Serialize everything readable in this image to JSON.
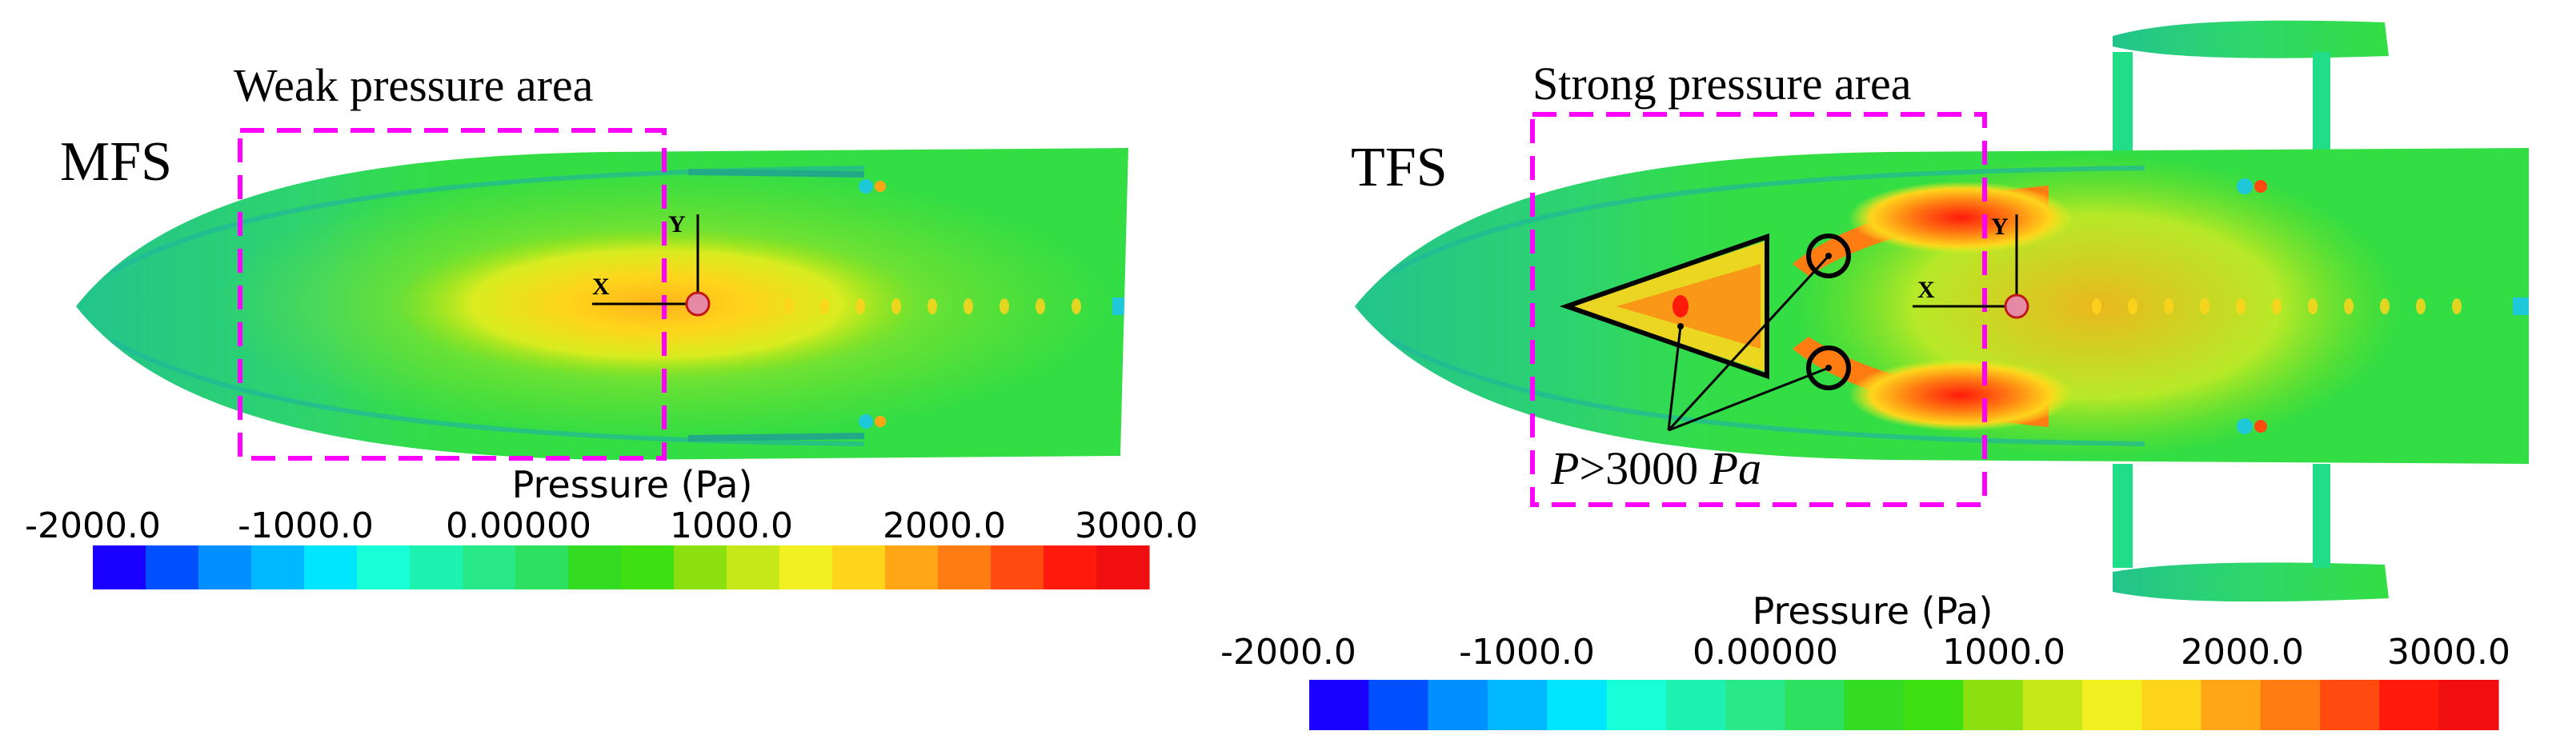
{
  "left_panel": {
    "config_label": "MFS",
    "region_label": "Weak pressure area",
    "axis_x": "X",
    "axis_y": "Y",
    "colorbar": {
      "title": "Pressure (Pa)",
      "ticks": [
        "-2000.0",
        "-1000.0",
        "0.00000",
        "1000.0",
        "2000.0",
        "3000.0"
      ]
    }
  },
  "right_panel": {
    "config_label": "TFS",
    "region_label": "Strong pressure area",
    "axis_x": "X",
    "axis_y": "Y",
    "annotation": {
      "P": "P",
      "rel": ">3000 ",
      "unit": "Pa"
    },
    "colorbar": {
      "title": "Pressure (Pa)",
      "ticks": [
        "-2000.0",
        "-1000.0",
        "0.00000",
        "1000.0",
        "2000.0",
        "3000.0"
      ]
    }
  },
  "colormap": [
    "#1a00ff",
    "#0050ff",
    "#0090ff",
    "#00b8ff",
    "#00e6ff",
    "#16ffd8",
    "#1ef2b0",
    "#28e888",
    "#2ee060",
    "#33dc22",
    "#3fe012",
    "#8ce010",
    "#c6e818",
    "#f3f021",
    "#ffd51c",
    "#ffa516",
    "#ff7c12",
    "#ff4a10",
    "#ff1a0c",
    "#f00f10"
  ],
  "colors": {
    "hull_base": "#33dd44",
    "hull_edge": "#22c48c",
    "dash_box": "#ff00ff",
    "moment_point": "#e58aa6"
  }
}
